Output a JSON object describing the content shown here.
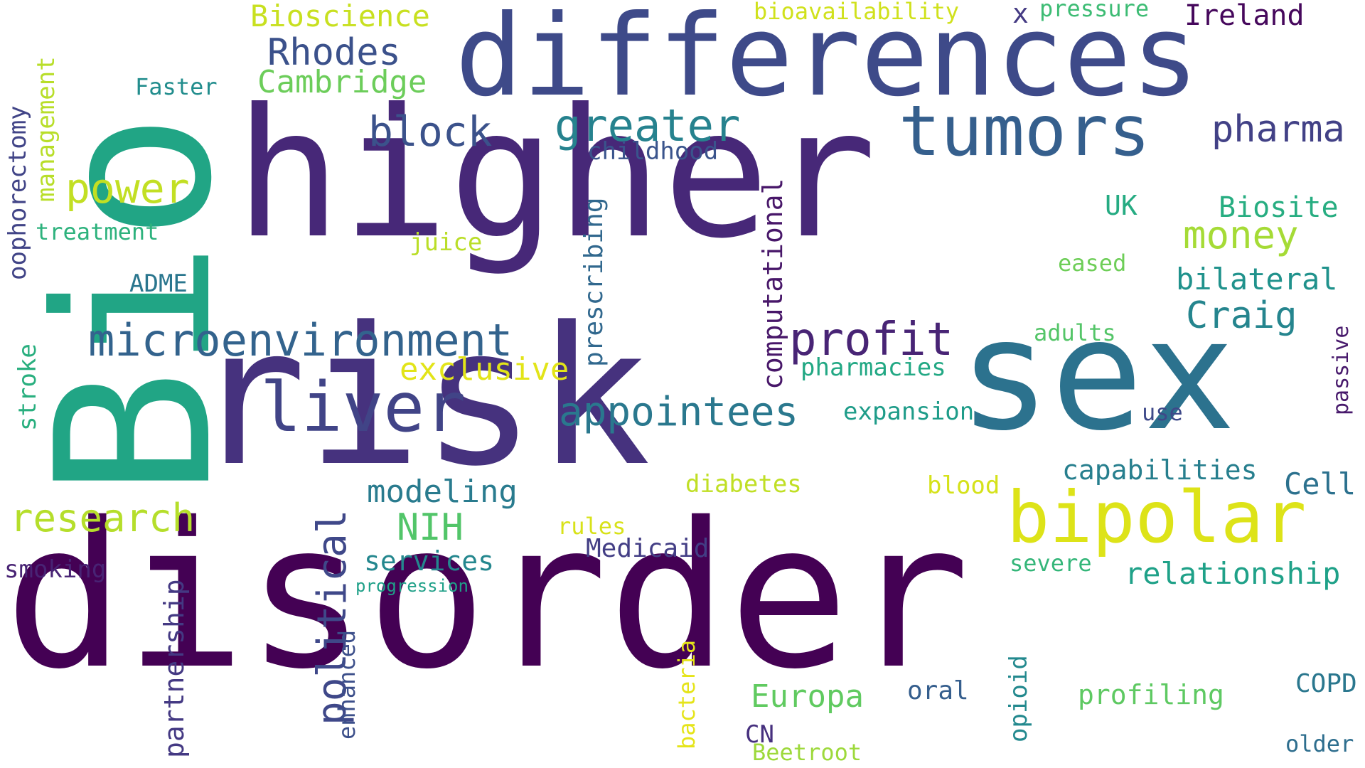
{
  "words": [
    {
      "text": "disorder",
      "color": "#440154"
    },
    {
      "text": "higher",
      "color": "#472878"
    },
    {
      "text": "risk",
      "color": "#46327e"
    },
    {
      "text": "Bio",
      "color": "#21a585"
    },
    {
      "text": "sex",
      "color": "#2c728e"
    },
    {
      "text": "differences",
      "color": "#3e4a89"
    },
    {
      "text": "tumors",
      "color": "#355f8d"
    },
    {
      "text": "bipolar",
      "color": "#dde318"
    },
    {
      "text": "liver",
      "color": "#414487"
    },
    {
      "text": "microenvironment",
      "color": "#33638d"
    },
    {
      "text": "profit",
      "color": "#482475"
    },
    {
      "text": "appointees",
      "color": "#2a788e"
    },
    {
      "text": "greater",
      "color": "#26828e"
    },
    {
      "text": "block",
      "color": "#3b528b"
    },
    {
      "text": "power",
      "color": "#c2df23"
    },
    {
      "text": "research",
      "color": "#b5de2b"
    },
    {
      "text": "pharma",
      "color": "#424186"
    },
    {
      "text": "money",
      "color": "#a5db36"
    },
    {
      "text": "Craig",
      "color": "#25858e"
    },
    {
      "text": "bilateral",
      "color": "#20928c"
    },
    {
      "text": "Biosite",
      "color": "#27ad81"
    },
    {
      "text": "Rhodes",
      "color": "#3b518b"
    },
    {
      "text": "Cambridge",
      "color": "#6ccd5a"
    },
    {
      "text": "Bioscience",
      "color": "#c8e020"
    },
    {
      "text": "political",
      "color": "#3f4889"
    },
    {
      "text": "computational",
      "color": "#481769"
    },
    {
      "text": "prescribing",
      "color": "#31688e"
    },
    {
      "text": "partnership",
      "color": "#443983"
    },
    {
      "text": "modeling",
      "color": "#297b8e"
    },
    {
      "text": "NIH",
      "color": "#52c569"
    },
    {
      "text": "exclusive",
      "color": "#e2e418"
    },
    {
      "text": "services",
      "color": "#24878e"
    },
    {
      "text": "relationship",
      "color": "#1fa188"
    },
    {
      "text": "capabilities",
      "color": "#277f8e"
    },
    {
      "text": "Europa",
      "color": "#60ca60"
    },
    {
      "text": "profiling",
      "color": "#5ec962"
    },
    {
      "text": "Medicaid",
      "color": "#433e85"
    },
    {
      "text": "management",
      "color": "#b8de29"
    },
    {
      "text": "oophorectomy",
      "color": "#414487"
    },
    {
      "text": "treatment",
      "color": "#2db27d"
    },
    {
      "text": "childhood",
      "color": "#3a548c"
    },
    {
      "text": "smoking",
      "color": "#482374"
    },
    {
      "text": "stroke",
      "color": "#29af7f"
    },
    {
      "text": "Ireland",
      "color": "#46085c"
    },
    {
      "text": "expansion",
      "color": "#1e9c89"
    },
    {
      "text": "pharmacies",
      "color": "#22a884"
    },
    {
      "text": "bioavailability",
      "color": "#d0e11c"
    },
    {
      "text": "pressure",
      "color": "#3dbc74"
    },
    {
      "text": "Cell",
      "color": "#2c718e"
    },
    {
      "text": "diabetes",
      "color": "#c0df25"
    },
    {
      "text": "passive",
      "color": "#481a6c"
    },
    {
      "text": "Faster",
      "color": "#228d8d"
    },
    {
      "text": "ADME",
      "color": "#2a768e"
    },
    {
      "text": "juice",
      "color": "#bade28"
    },
    {
      "text": "UK",
      "color": "#25ab82"
    },
    {
      "text": "eased",
      "color": "#6ece58"
    },
    {
      "text": "adults",
      "color": "#54c568"
    },
    {
      "text": "use",
      "color": "#3e4989"
    },
    {
      "text": "blood",
      "color": "#d5e21a"
    },
    {
      "text": "rules",
      "color": "#d8e219"
    },
    {
      "text": "severe",
      "color": "#34b679"
    },
    {
      "text": "oral",
      "color": "#355e8d"
    },
    {
      "text": "opioid",
      "color": "#23898e"
    },
    {
      "text": "COPD",
      "color": "#2a778e"
    },
    {
      "text": "older",
      "color": "#2e6e8e"
    },
    {
      "text": "bacteria",
      "color": "#e5e419"
    },
    {
      "text": "enhanced",
      "color": "#3c4f8a"
    },
    {
      "text": "progression",
      "color": "#1fa088"
    },
    {
      "text": "Beetroot",
      "color": "#9dd93b"
    },
    {
      "text": "CN",
      "color": "#46307e"
    },
    {
      "text": "x",
      "color": "#443a83"
    }
  ]
}
